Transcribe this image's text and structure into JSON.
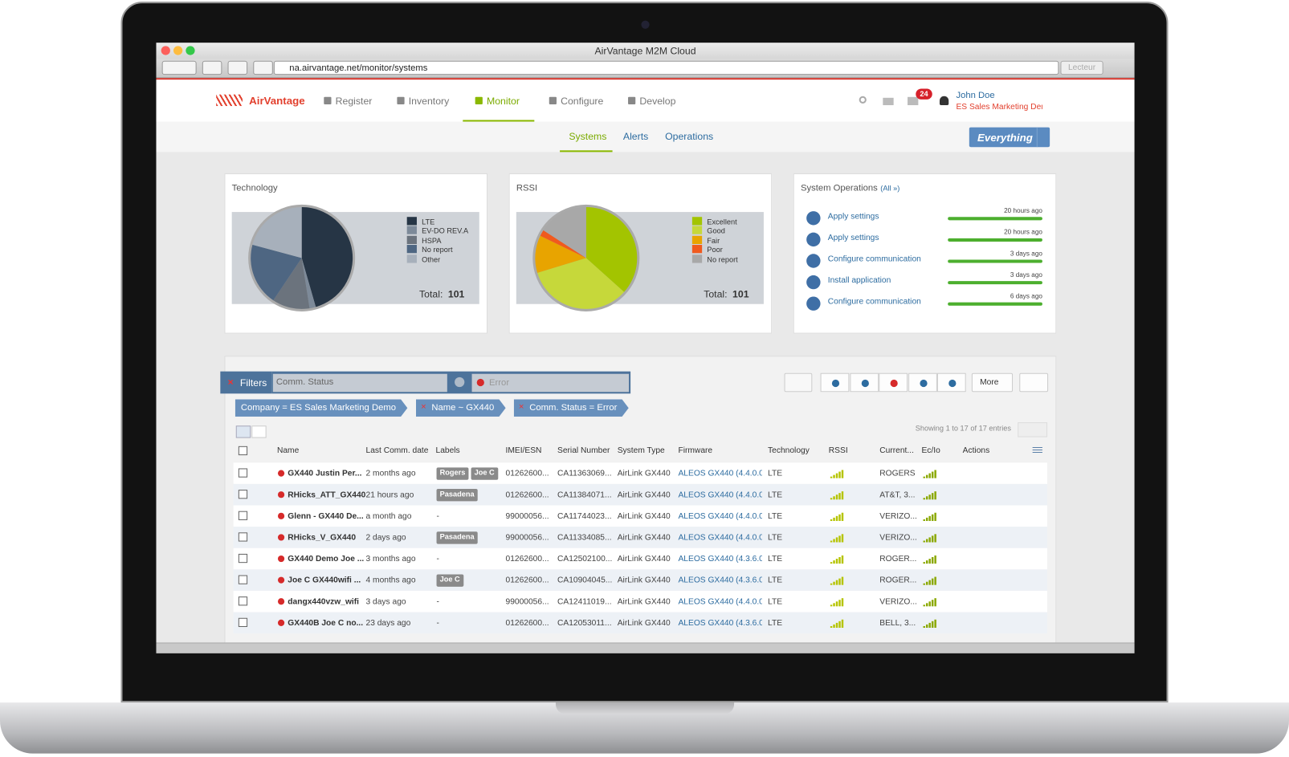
{
  "browser": {
    "title": "AirVantage M2M Cloud",
    "url": "na.airvantage.net/monitor/systems",
    "reader": "Lecteur"
  },
  "nav": {
    "brand": "AirVantage",
    "items": [
      "Register",
      "Inventory",
      "Monitor",
      "Configure",
      "Develop"
    ],
    "notifications": "24",
    "user": "John Doe",
    "company": "ES Sales Marketing Demo"
  },
  "subnav": {
    "items": [
      "Systems",
      "Alerts",
      "Operations"
    ],
    "scope": "Everything"
  },
  "chart_data": [
    {
      "type": "pie",
      "title": "Technology",
      "categories": [
        "LTE",
        "EV-DO REV.A",
        "HSPA",
        "No report",
        "Other"
      ],
      "values": [
        46,
        2,
        12,
        20,
        21
      ],
      "colors": [
        "#263545",
        "#7d8a99",
        "#6b737d",
        "#4e6682",
        "#a7b0bb"
      ],
      "total_label": "Total:",
      "total": 101
    },
    {
      "type": "pie",
      "title": "RSSI",
      "categories": [
        "Excellent",
        "Good",
        "Fair",
        "Poor",
        "No report"
      ],
      "values": [
        37,
        34,
        12,
        2,
        16
      ],
      "colors": [
        "#a3c400",
        "#c6d83a",
        "#e8a400",
        "#f05a1e",
        "#a8a8a8"
      ],
      "total_label": "Total:",
      "total": 101
    }
  ],
  "operations": {
    "title": "System Operations",
    "all_link": "(All »)",
    "items": [
      {
        "label": "Apply settings",
        "time": "20 hours ago"
      },
      {
        "label": "Apply settings",
        "time": "20 hours ago"
      },
      {
        "label": "Configure communication",
        "time": "3 days ago"
      },
      {
        "label": "Install application",
        "time": "3 days ago"
      },
      {
        "label": "Configure communication",
        "time": "6 days ago"
      }
    ]
  },
  "filters": {
    "label": "Filters",
    "field": "Comm. Status",
    "value": "Error",
    "more": "More",
    "tags": [
      "Company = ES Sales Marketing Demo",
      "Name ~ GX440",
      "Comm. Status = Error"
    ]
  },
  "table": {
    "info": "Showing 1 to 17 of 17 entries",
    "columns": [
      "Name",
      "Last Comm. date",
      "Labels",
      "IMEI/ESN",
      "Serial Number",
      "System Type",
      "Firmware",
      "Technology",
      "RSSI",
      "Current...",
      "Ec/Io",
      "Actions"
    ],
    "rows": [
      {
        "name": "GX440 Justin Per...",
        "last": "2 months ago",
        "labels": [
          "Rogers",
          "Joe C"
        ],
        "imei": "01262600...",
        "serial": "CA11363069...",
        "system": "AirLink GX440",
        "firmware": "ALEOS GX440 (4.4.0.01",
        "tech": "LTE",
        "current": "ROGERS"
      },
      {
        "name": "RHicks_ATT_GX440",
        "last": "21 hours ago",
        "labels": [
          "Pasadena"
        ],
        "imei": "01262600...",
        "serial": "CA11384071...",
        "system": "AirLink GX440",
        "firmware": "ALEOS GX440 (4.4.0.01",
        "tech": "LTE",
        "current": "AT&T, 3..."
      },
      {
        "name": "Glenn - GX440 De...",
        "last": "a month ago",
        "labels": "-",
        "imei": "99000056...",
        "serial": "CA11744023...",
        "system": "AirLink GX440",
        "firmware": "ALEOS GX440 (4.4.0.01",
        "tech": "LTE",
        "current": "VERIZO..."
      },
      {
        "name": "RHicks_V_GX440",
        "last": "2 days ago",
        "labels": [
          "Pasadena"
        ],
        "imei": "99000056...",
        "serial": "CA11334085...",
        "system": "AirLink GX440",
        "firmware": "ALEOS GX440 (4.4.0.01",
        "tech": "LTE",
        "current": "VERIZO..."
      },
      {
        "name": "GX440 Demo Joe ...",
        "last": "3 months ago",
        "labels": "-",
        "imei": "01262600...",
        "serial": "CA12502100...",
        "system": "AirLink GX440",
        "firmware": "ALEOS GX440 (4.3.6.01",
        "tech": "LTE",
        "current": "ROGER..."
      },
      {
        "name": "Joe C GX440wifi ...",
        "last": "4 months ago",
        "labels": [
          "Joe C"
        ],
        "imei": "01262600...",
        "serial": "CA10904045...",
        "system": "AirLink GX440",
        "firmware": "ALEOS GX440 (4.3.6.01",
        "tech": "LTE",
        "current": "ROGER..."
      },
      {
        "name": "dangx440vzw_wifi",
        "last": "3 days ago",
        "labels": "-",
        "imei": "99000056...",
        "serial": "CA12411019...",
        "system": "AirLink GX440",
        "firmware": "ALEOS GX440 (4.4.0.0:",
        "tech": "LTE",
        "current": "VERIZO..."
      },
      {
        "name": "GX440B Joe C no...",
        "last": "23 days ago",
        "labels": "-",
        "imei": "01262600...",
        "serial": "CA12053011...",
        "system": "AirLink GX440",
        "firmware": "ALEOS GX440 (4.3.6.01",
        "tech": "LTE",
        "current": "BELL, 3..."
      }
    ]
  }
}
